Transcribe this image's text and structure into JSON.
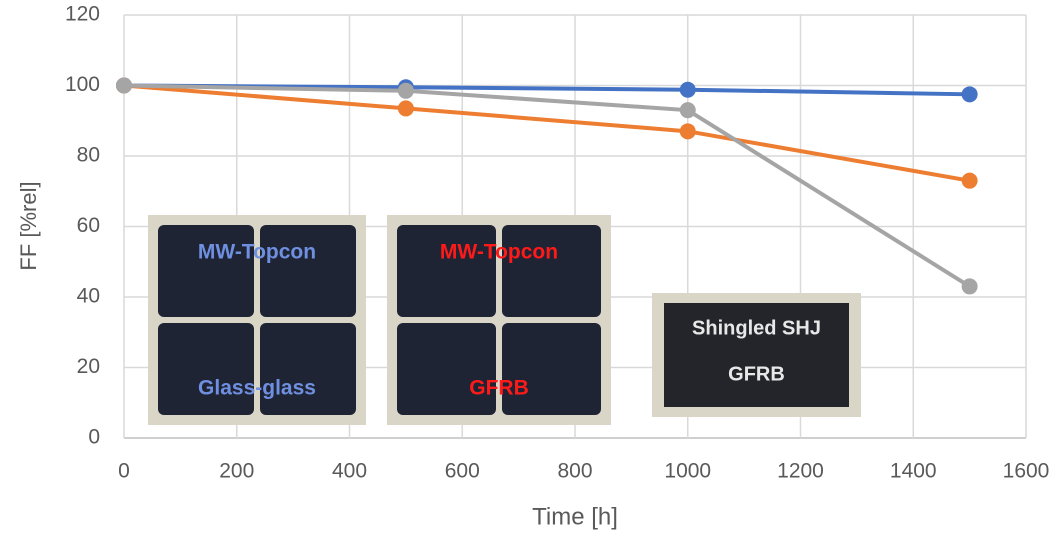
{
  "chart_data": {
    "type": "line",
    "x": [
      0,
      500,
      1000,
      1500
    ],
    "series": [
      {
        "color": "#4472c4",
        "values": [
          100,
          99.5,
          98.8,
          97.5
        ]
      },
      {
        "color": "#ed7d31",
        "values": [
          100,
          93.5,
          87,
          73
        ]
      },
      {
        "color": "#a5a5a5",
        "values": [
          100,
          98.5,
          93,
          43
        ]
      }
    ],
    "xlabel": "Time [h]",
    "ylabel": "FF [%rel]",
    "xlim": [
      0,
      1600
    ],
    "xticks": [
      0,
      200,
      400,
      600,
      800,
      1000,
      1200,
      1400,
      1600
    ],
    "ylim": [
      0,
      120
    ],
    "yticks": [
      0,
      20,
      40,
      60,
      80,
      100,
      120
    ],
    "grid": true,
    "insets": [
      {
        "lines": [
          "MW-Topcon",
          "Glass-glass"
        ],
        "color": "#6f8fe0"
      },
      {
        "lines": [
          "MW-Topcon",
          "GFRB"
        ],
        "color": "#ff1a1a"
      },
      {
        "lines": [
          "Shingled SHJ",
          "GFRB"
        ],
        "color": "#e8e8e8"
      }
    ]
  }
}
